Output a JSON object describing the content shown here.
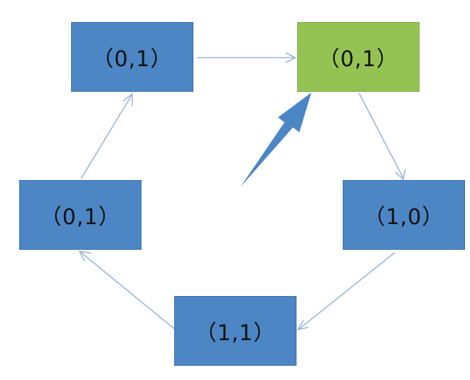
{
  "nodes": {
    "top_left": {
      "label": "（0,1）"
    },
    "top_right": {
      "label": "（0,1）"
    },
    "middle_left": {
      "label": "（0,1）"
    },
    "middle_right": {
      "label": "（1,0）"
    },
    "bottom": {
      "label": "（1,1）"
    }
  },
  "colors": {
    "node_fill": "#4d86c4",
    "highlight_fill": "#95c353",
    "edge": "#9ab6d8",
    "pointer_arrow": "#4d86c4"
  }
}
